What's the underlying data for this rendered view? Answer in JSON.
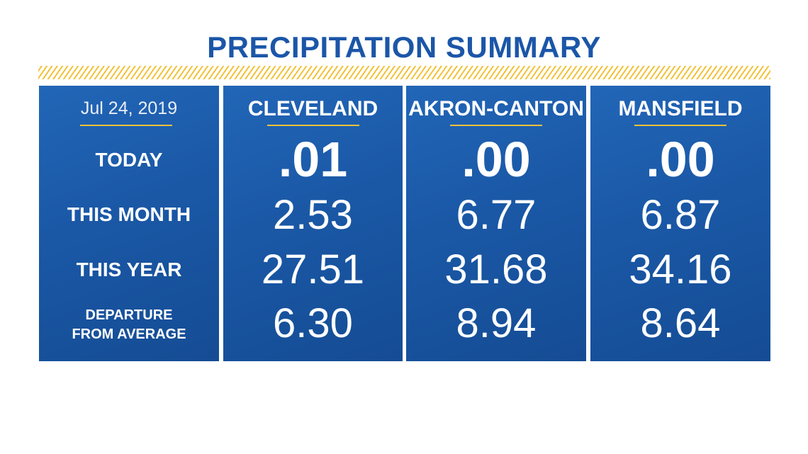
{
  "title": "PRECIPITATION SUMMARY",
  "date": "Jul 24, 2019",
  "row_labels": {
    "today": "TODAY",
    "this_month": "THIS MONTH",
    "this_year": "THIS YEAR",
    "departure_line1": "DEPARTURE",
    "departure_line2": "FROM AVERAGE"
  },
  "locations": [
    {
      "name": "CLEVELAND",
      "today": ".01",
      "this_month": "2.53",
      "this_year": "27.51",
      "departure": "6.30"
    },
    {
      "name": "AKRON-CANTON",
      "today": ".00",
      "this_month": "6.77",
      "this_year": "31.68",
      "departure": "8.94"
    },
    {
      "name": "MANSFIELD",
      "today": ".00",
      "this_month": "6.87",
      "this_year": "34.16",
      "departure": "8.64"
    }
  ],
  "colors": {
    "title_blue": "#1b56a8",
    "panel_blue": "#1a58a6",
    "accent_gold": "#f2c23a"
  }
}
